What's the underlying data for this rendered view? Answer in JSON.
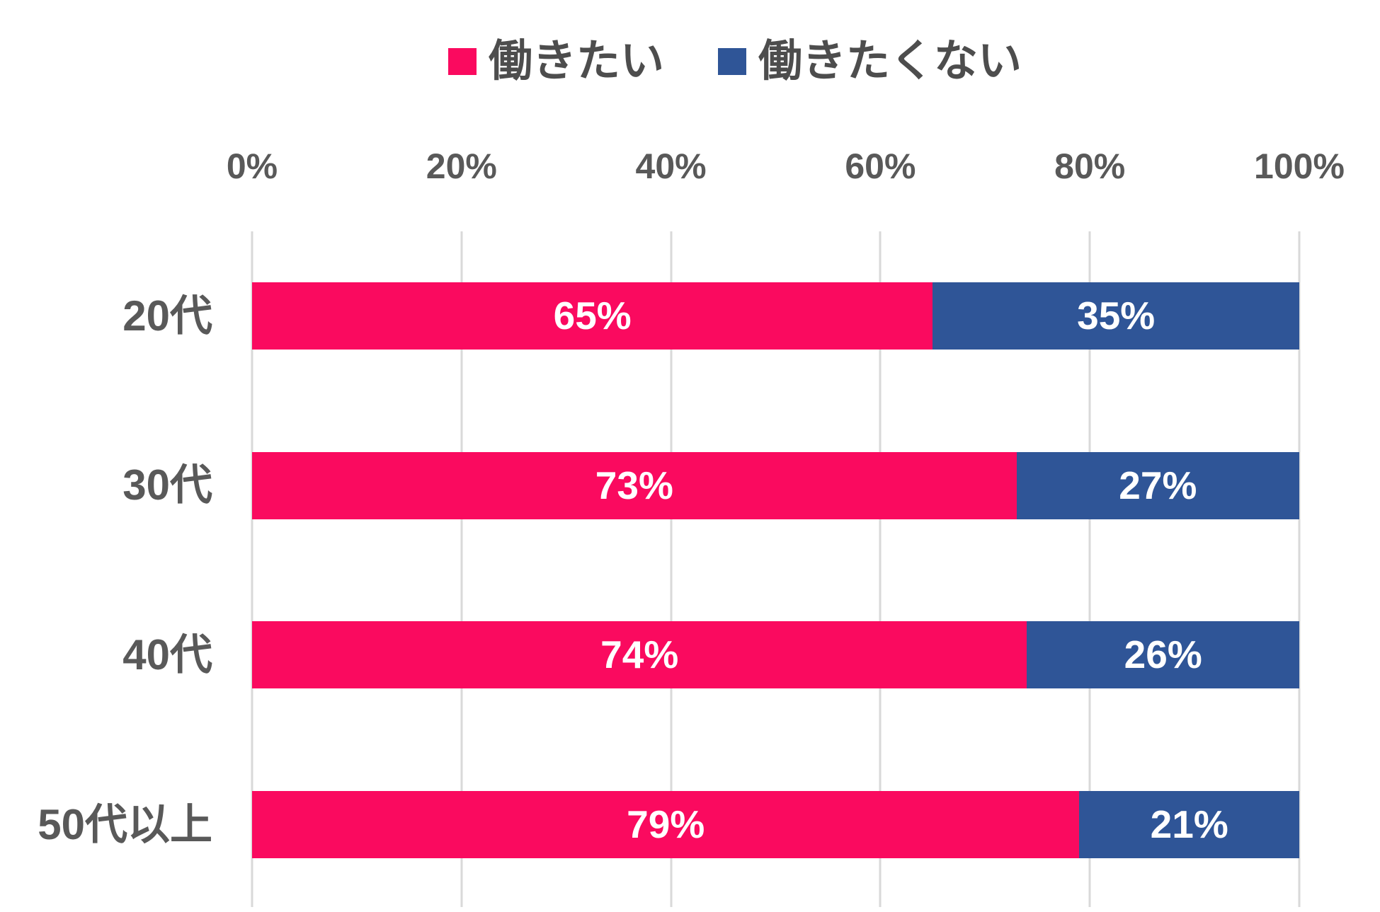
{
  "chart_data": {
    "type": "bar",
    "orientation": "horizontal",
    "stacked": true,
    "title": "",
    "categories": [
      "20代",
      "30代",
      "40代",
      "50代以上"
    ],
    "series": [
      {
        "name": "働きたい",
        "color": "#FA0A5F",
        "values": [
          65,
          73,
          74,
          79
        ]
      },
      {
        "name": "働きたくない",
        "color": "#2F5597",
        "values": [
          35,
          27,
          26,
          21
        ]
      }
    ],
    "value_suffix": "%",
    "value_label_color": "#ffffff",
    "x_axis": {
      "position": "top",
      "min": 0,
      "max": 100,
      "ticks": [
        "0%",
        "20%",
        "40%",
        "60%",
        "80%",
        "100%"
      ]
    },
    "grid": {
      "vertical": true,
      "color": "#D9D9D9"
    },
    "legend": {
      "position": "top"
    }
  }
}
